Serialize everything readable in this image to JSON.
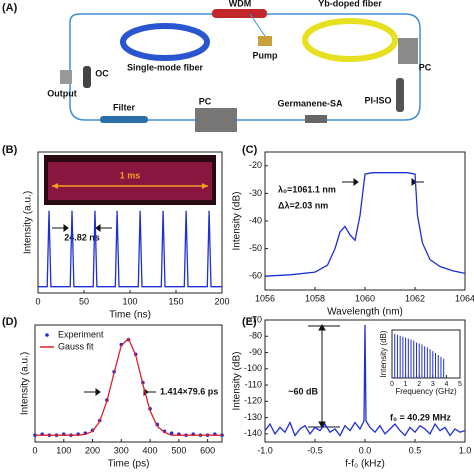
{
  "diagram": {
    "labels": [
      "(A)",
      "WDM",
      "Yb-doped fiber",
      "Single-mode fiber",
      "Pump",
      "PC",
      "Output",
      "OC",
      "PI-ISO",
      "Filter",
      "PC",
      "Germanene-SA"
    ]
  },
  "chart_data": [
    {
      "type": "line",
      "panel": "(B)",
      "xlabel": "Time (ns)",
      "ylabel": "Intensity (a.u.)",
      "annotations": [
        "24.82 ns",
        "1 ms"
      ],
      "xlim": [
        0,
        200
      ],
      "xticks": [
        0,
        50,
        100,
        150,
        200
      ],
      "ylim": [
        -0.05,
        1.75
      ],
      "yticks": [],
      "series": [
        {
          "name": null,
          "color": "#1f2fd6",
          "style": "line",
          "x": [
            0,
            10,
            12,
            14,
            35,
            37,
            39,
            60,
            62,
            64,
            84,
            86,
            88,
            109,
            111,
            113,
            134,
            136,
            138,
            159,
            161,
            163,
            184,
            186,
            188,
            200
          ],
          "values": [
            0.03,
            0.03,
            1,
            0.03,
            0.03,
            1,
            0.03,
            0.03,
            1,
            0.03,
            0.03,
            1,
            0.03,
            0.03,
            1,
            0.03,
            0.03,
            1,
            0.03,
            0.03,
            1,
            0.03,
            0.03,
            1,
            0.03,
            0.03
          ]
        }
      ]
    },
    {
      "type": "line",
      "panel": "(C)",
      "xlabel": "Wavelength (nm)",
      "ylabel": "Intensity (dB)",
      "annotations": [
        "λ₀=1061.1 nm",
        "Δλ=2.03 nm"
      ],
      "xlim": [
        1056,
        1064
      ],
      "xticks": [
        1056,
        1058,
        1060,
        1062,
        1064
      ],
      "ylim": [
        -65,
        -15
      ],
      "yticks": [
        -60,
        -50,
        -40,
        -30,
        -20
      ],
      "series": [
        {
          "name": null,
          "color": "#1f2fd6",
          "style": "line",
          "x": [
            1056,
            1057,
            1058,
            1058.5,
            1058.8,
            1059,
            1059.2,
            1059.4,
            1059.6,
            1059.8,
            1060,
            1060.3,
            1061,
            1061.7,
            1062,
            1062.1,
            1062.3,
            1062.6,
            1063,
            1063.5,
            1064
          ],
          "values": [
            -60,
            -59.5,
            -58.5,
            -56,
            -50,
            -44,
            -42,
            -45,
            -47,
            -38,
            -23,
            -22.5,
            -22.5,
            -22.5,
            -23,
            -38,
            -48,
            -54,
            -56.5,
            -58,
            -59
          ]
        }
      ]
    },
    {
      "type": "line",
      "panel": "(D)",
      "xlabel": "Time (ps)",
      "ylabel": "Intensity (a.u.)",
      "annotations": [
        "1.414×79.6 ps"
      ],
      "legend": "upper left",
      "xlim": [
        0,
        650
      ],
      "xticks": [
        0,
        100,
        200,
        300,
        400,
        500,
        600
      ],
      "ylim": [
        -0.05,
        1.15
      ],
      "yticks": [],
      "series": [
        {
          "name": "Experiment",
          "color": "#1f2fd6",
          "style": "scatter",
          "x": [
            0,
            25,
            50,
            75,
            100,
            125,
            150,
            175,
            200,
            225,
            250,
            275,
            300,
            325,
            350,
            375,
            400,
            425,
            450,
            475,
            500,
            525,
            550,
            575,
            600,
            625,
            650
          ],
          "values": [
            0.02,
            0.03,
            0.02,
            0.02,
            0.03,
            0.02,
            0.03,
            0.04,
            0.07,
            0.17,
            0.38,
            0.67,
            0.95,
            1,
            0.85,
            0.56,
            0.29,
            0.13,
            0.06,
            0.04,
            0.03,
            0.02,
            0.03,
            0.02,
            0.02,
            0.03,
            0.02
          ]
        },
        {
          "name": "Gauss fit",
          "color": "#e0202a",
          "style": "line",
          "x": [
            0,
            25,
            50,
            75,
            100,
            125,
            150,
            175,
            200,
            225,
            250,
            275,
            300,
            325,
            350,
            375,
            400,
            425,
            450,
            475,
            500,
            525,
            550,
            575,
            600,
            625,
            650
          ],
          "values": [
            0.02,
            0.02,
            0.02,
            0.02,
            0.02,
            0.02,
            0.02,
            0.03,
            0.06,
            0.16,
            0.37,
            0.66,
            0.94,
            1.01,
            0.84,
            0.54,
            0.27,
            0.11,
            0.05,
            0.02,
            0.02,
            0.02,
            0.02,
            0.02,
            0.02,
            0.02,
            0.02
          ]
        }
      ]
    },
    {
      "type": "line",
      "panel": "(E)",
      "xlabel": "f-f₀ (kHz)",
      "ylabel": "Intensity (dB)",
      "annotations": [
        "~60 dB",
        "f₀ = 40.29 MHz"
      ],
      "xlim": [
        -1,
        1
      ],
      "xticks": [
        {
          "value": -1,
          "label": "-1.0"
        },
        {
          "value": -0.5,
          "label": "-0.5"
        },
        {
          "value": 0,
          "label": "0.0"
        },
        {
          "value": 0.5,
          "label": "0.5"
        },
        {
          "value": 1,
          "label": "1.0"
        }
      ],
      "ylim": [
        -145,
        -70
      ],
      "yticks": [
        -140,
        -130,
        -120,
        -110,
        -100,
        -90,
        -80,
        -70
      ],
      "series": [
        {
          "name": null,
          "color": "#1f2fd6",
          "style": "line",
          "x": [
            -1,
            -0.95,
            -0.9,
            -0.85,
            -0.8,
            -0.75,
            -0.7,
            -0.65,
            -0.6,
            -0.55,
            -0.5,
            -0.45,
            -0.4,
            -0.35,
            -0.3,
            -0.25,
            -0.2,
            -0.15,
            -0.1,
            -0.05,
            -0.01,
            0,
            0.01,
            0.05,
            0.1,
            0.15,
            0.2,
            0.25,
            0.3,
            0.35,
            0.4,
            0.45,
            0.5,
            0.55,
            0.6,
            0.65,
            0.7,
            0.75,
            0.8,
            0.85,
            0.9,
            0.95,
            1
          ],
          "values": [
            -138,
            -134,
            -140,
            -136,
            -139,
            -133,
            -141,
            -137,
            -135,
            -140,
            -136,
            -138,
            -134,
            -139,
            -137,
            -141,
            -135,
            -138,
            -133,
            -137,
            -132,
            -73,
            -132,
            -136,
            -139,
            -135,
            -140,
            -137,
            -134,
            -138,
            -141,
            -136,
            -139,
            -135,
            -137,
            -140,
            -134,
            -138,
            -136,
            -141,
            -137,
            -139,
            -138
          ]
        }
      ]
    },
    {
      "type": "stem",
      "xlabel": "Frequency (GHz)",
      "ylabel": "Intensity (dB)",
      "xlim": [
        0,
        5
      ],
      "xticks": [
        0,
        1,
        2,
        3,
        4,
        5
      ],
      "ylim": [
        -75,
        -25
      ],
      "yticks": [],
      "series": [
        {
          "name": null,
          "color": "#1f2fd6",
          "style": "stem",
          "x": [
            0.2,
            0.4,
            0.6,
            0.8,
            1,
            1.2,
            1.4,
            1.6,
            1.8,
            2,
            2.2,
            2.4,
            2.6,
            2.8,
            3,
            3.2,
            3.4,
            3.6,
            3.8
          ],
          "values": [
            -29,
            -30,
            -31,
            -32,
            -33,
            -34,
            -35,
            -36,
            -38,
            -39,
            -40,
            -42,
            -43,
            -45,
            -47,
            -49,
            -51,
            -53,
            -55
          ]
        }
      ]
    }
  ]
}
